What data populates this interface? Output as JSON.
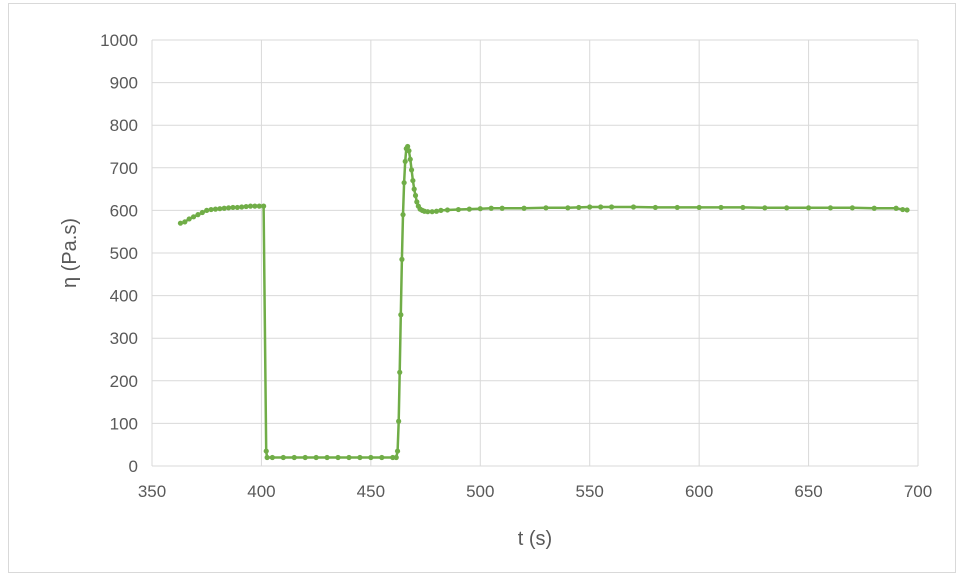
{
  "chart_data": {
    "type": "line",
    "title": "",
    "xlabel": "t (s)",
    "ylabel": "η (Pa.s)",
    "xlim": [
      350,
      700
    ],
    "ylim": [
      0,
      1000
    ],
    "xticks": [
      "350",
      "400",
      "450",
      "500",
      "550",
      "600",
      "650",
      "700"
    ],
    "yticks": [
      "0",
      "100",
      "200",
      "300",
      "400",
      "500",
      "600",
      "700",
      "800",
      "900",
      "1000"
    ],
    "grid": true,
    "legend": "none",
    "series": [
      {
        "color": "#70ad47",
        "x": [
          363,
          365,
          367,
          369,
          371,
          373,
          375,
          377,
          379,
          381,
          383,
          385,
          387,
          389,
          391,
          393,
          395,
          397,
          399,
          401,
          402.2,
          402.6,
          405,
          410,
          415,
          420,
          425,
          430,
          435,
          440,
          445,
          450,
          455,
          460,
          461.6,
          462.2,
          462.7,
          463.2,
          463.7,
          464.2,
          464.7,
          465.2,
          465.7,
          466.2,
          466.8,
          467.4,
          468,
          468.6,
          469.2,
          469.8,
          470.4,
          471,
          471.7,
          472.5,
          473.5,
          474.5,
          476,
          478,
          480,
          482,
          485,
          490,
          495,
          500,
          505,
          510,
          520,
          530,
          540,
          545,
          550,
          555,
          560,
          570,
          580,
          590,
          600,
          610,
          620,
          630,
          640,
          650,
          660,
          670,
          680,
          690,
          693,
          695
        ],
        "y": [
          570,
          573,
          580,
          585,
          590,
          595,
          600,
          602,
          603,
          604,
          605,
          606,
          607,
          607,
          608,
          609,
          610,
          610,
          610,
          610,
          35,
          20,
          20,
          20,
          20,
          20,
          20,
          20,
          20,
          20,
          20,
          20,
          20,
          20,
          20,
          35,
          105,
          220,
          355,
          485,
          590,
          665,
          715,
          745,
          750,
          740,
          720,
          695,
          670,
          650,
          635,
          620,
          610,
          603,
          600,
          598,
          597,
          597,
          598,
          600,
          601,
          602,
          603,
          604,
          605,
          605,
          605,
          606,
          606,
          607,
          608,
          608,
          608,
          608,
          607,
          607,
          607,
          607,
          607,
          606,
          606,
          606,
          606,
          606,
          605,
          605,
          602,
          601
        ]
      }
    ]
  }
}
